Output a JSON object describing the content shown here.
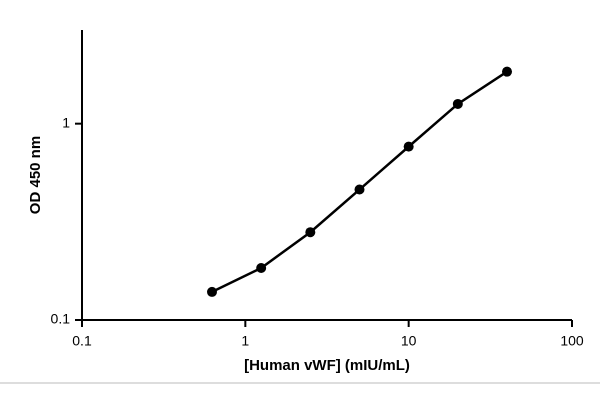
{
  "chart_data": {
    "type": "line",
    "x_label": "[Human vWF] (mIU/mL)",
    "y_label": "OD 450 nm",
    "x": [
      0.625,
      1.25,
      2.5,
      5,
      10,
      20,
      40
    ],
    "series": [
      {
        "color": "#000000",
        "values": [
          0.139,
          0.184,
          0.28,
          0.462,
          0.764,
          1.26,
          1.84
        ]
      }
    ],
    "x_log": true,
    "y_log": true,
    "xlim": [
      0.1,
      100
    ],
    "xticks": [
      0.1,
      1,
      10,
      100
    ],
    "ylim": [
      0.1,
      3
    ],
    "yticks": [
      0.1,
      1
    ]
  }
}
